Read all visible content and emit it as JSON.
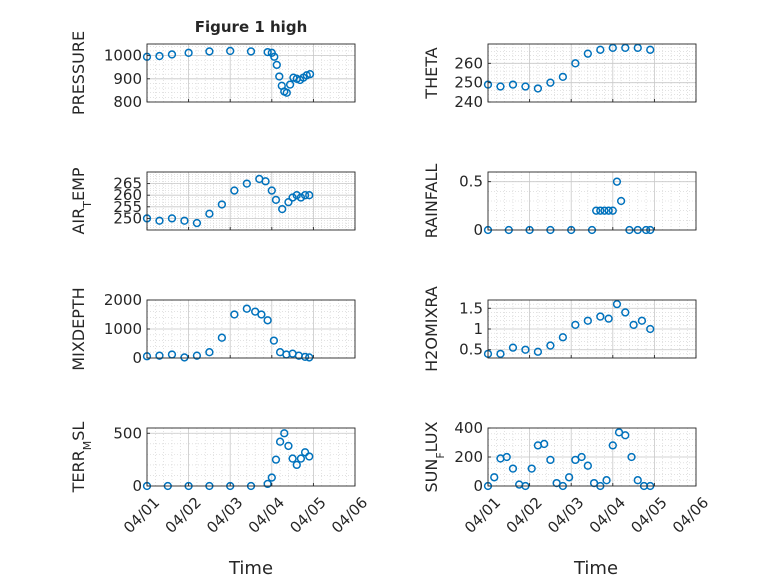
{
  "figure_title": "Figure 1 high",
  "x_tick_labels": [
    "04/01",
    "04/02",
    "04/03",
    "04/04",
    "04/05",
    "04/06"
  ],
  "x_range": [
    "04/01",
    "04/06"
  ],
  "x_label": "Time",
  "marker_color": "#0072BD",
  "chart_data": [
    {
      "type": "scatter",
      "marker": "circle",
      "ylabel": "PRESSURE",
      "ylim": [
        800,
        1050
      ],
      "yticks": [
        800,
        900,
        1000
      ],
      "grid": "on",
      "x_days": [
        0,
        0.3,
        0.6,
        1,
        1.5,
        2,
        2.5,
        2.9,
        3,
        3.06,
        3.12,
        3.18,
        3.24,
        3.3,
        3.36,
        3.44,
        3.52,
        3.6,
        3.68,
        3.76,
        3.84,
        3.92
      ],
      "y": [
        995,
        998,
        1005,
        1012,
        1018,
        1020,
        1018,
        1015,
        1012,
        995,
        960,
        910,
        870,
        845,
        840,
        875,
        905,
        900,
        895,
        905,
        915,
        920
      ]
    },
    {
      "type": "scatter",
      "marker": "circle",
      "ylabel": "THETA",
      "ylim": [
        240,
        270
      ],
      "yticks": [
        240,
        250,
        260
      ],
      "grid": "on",
      "x_days": [
        0,
        0.3,
        0.6,
        0.9,
        1.2,
        1.5,
        1.8,
        2.1,
        2.4,
        2.7,
        3,
        3.3,
        3.6,
        3.9
      ],
      "y": [
        249,
        248,
        249,
        248,
        247,
        250,
        253,
        260,
        265,
        267,
        268,
        268,
        268,
        267
      ]
    },
    {
      "type": "scatter",
      "marker": "circle",
      "ylabel": "AIR_TEMP",
      "ylim": [
        245,
        270
      ],
      "yticks": [
        250,
        255,
        260,
        265
      ],
      "grid": "on",
      "x_days": [
        0,
        0.3,
        0.6,
        0.9,
        1.2,
        1.5,
        1.8,
        2.1,
        2.4,
        2.7,
        2.85,
        3,
        3.1,
        3.25,
        3.4,
        3.5,
        3.6,
        3.7,
        3.8,
        3.9
      ],
      "y": [
        250,
        249,
        250,
        249,
        248,
        252,
        256,
        262,
        265,
        267,
        266,
        262,
        258,
        254,
        257,
        259,
        260,
        259,
        260,
        260
      ]
    },
    {
      "type": "scatter",
      "marker": "circle",
      "ylabel": "RAINFALL",
      "ylim": [
        0,
        0.6
      ],
      "yticks": [
        0,
        0.5
      ],
      "grid": "on",
      "x_days": [
        0,
        0.5,
        1,
        1.5,
        2,
        2.5,
        2.6,
        2.7,
        2.8,
        2.9,
        3.0,
        3.1,
        3.2,
        3.4,
        3.6,
        3.8,
        3.9
      ],
      "y": [
        0,
        0,
        0,
        0,
        0,
        0,
        0.2,
        0.2,
        0.2,
        0.2,
        0.2,
        0.5,
        0.3,
        0,
        0,
        0,
        0
      ]
    },
    {
      "type": "scatter",
      "marker": "circle",
      "ylabel": "MIXDEPTH",
      "ylim": [
        0,
        2000
      ],
      "yticks": [
        0,
        1000,
        2000
      ],
      "grid": "on",
      "x_days": [
        0,
        0.3,
        0.6,
        0.9,
        1.2,
        1.5,
        1.8,
        2.1,
        2.4,
        2.6,
        2.75,
        2.9,
        3.05,
        3.2,
        3.35,
        3.5,
        3.65,
        3.8,
        3.9
      ],
      "y": [
        60,
        80,
        120,
        20,
        80,
        200,
        700,
        1500,
        1700,
        1600,
        1500,
        1300,
        600,
        200,
        120,
        150,
        80,
        40,
        20
      ]
    },
    {
      "type": "scatter",
      "marker": "circle",
      "ylabel": "H2OMIXRA",
      "ylim": [
        0.3,
        1.7
      ],
      "yticks": [
        0.5,
        1,
        1.5
      ],
      "grid": "on",
      "x_days": [
        0,
        0.3,
        0.6,
        0.9,
        1.2,
        1.5,
        1.8,
        2.1,
        2.4,
        2.7,
        2.9,
        3.1,
        3.3,
        3.5,
        3.7,
        3.9
      ],
      "y": [
        0.4,
        0.4,
        0.55,
        0.5,
        0.45,
        0.6,
        0.8,
        1.1,
        1.2,
        1.3,
        1.25,
        1.6,
        1.4,
        1.1,
        1.2,
        1.0
      ]
    },
    {
      "type": "scatter",
      "marker": "circle",
      "ylabel": "TERR_MSL",
      "ylim": [
        0,
        550
      ],
      "yticks": [
        0,
        500
      ],
      "grid": "on",
      "x_days": [
        0,
        0.5,
        1,
        1.5,
        2,
        2.5,
        2.9,
        3.0,
        3.1,
        3.2,
        3.3,
        3.4,
        3.5,
        3.6,
        3.7,
        3.8,
        3.9
      ],
      "y": [
        0,
        0,
        0,
        0,
        0,
        0,
        20,
        80,
        250,
        420,
        500,
        380,
        260,
        200,
        260,
        320,
        280
      ]
    },
    {
      "type": "scatter",
      "marker": "circle",
      "ylabel": "SUN_FLUX",
      "ylim": [
        0,
        400
      ],
      "yticks": [
        0,
        200,
        400
      ],
      "grid": "on",
      "x_days": [
        0,
        0.15,
        0.3,
        0.45,
        0.6,
        0.75,
        0.9,
        1.05,
        1.2,
        1.35,
        1.5,
        1.65,
        1.8,
        1.95,
        2.1,
        2.25,
        2.4,
        2.55,
        2.7,
        2.85,
        3.0,
        3.15,
        3.3,
        3.45,
        3.6,
        3.75,
        3.9
      ],
      "y": [
        0,
        60,
        190,
        200,
        120,
        10,
        0,
        120,
        280,
        290,
        180,
        20,
        0,
        60,
        180,
        200,
        140,
        20,
        0,
        40,
        280,
        370,
        350,
        200,
        40,
        0,
        0
      ]
    }
  ]
}
